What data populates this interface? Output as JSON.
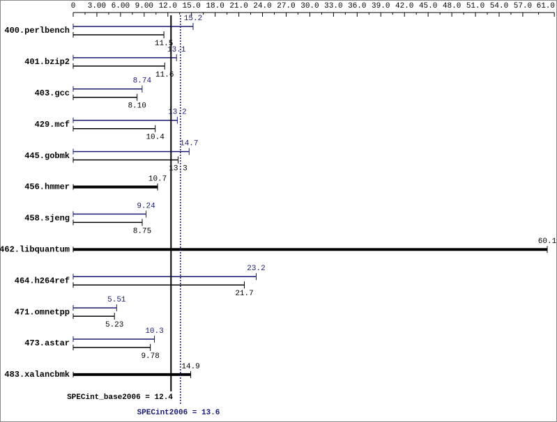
{
  "chart_data": {
    "type": "bar",
    "orientation": "horizontal",
    "categories": [
      "400.perlbench",
      "401.bzip2",
      "403.gcc",
      "429.mcf",
      "445.gobmk",
      "456.hmmer",
      "458.sjeng",
      "462.libquantum",
      "464.h264ref",
      "471.omnetpp",
      "473.astar",
      "483.xalancbmk"
    ],
    "series": [
      {
        "color": "#191970",
        "values": [
          15.2,
          13.1,
          8.74,
          13.2,
          14.7,
          null,
          9.24,
          null,
          23.2,
          5.51,
          10.3,
          null
        ]
      },
      {
        "color": "#000000",
        "values": [
          11.5,
          11.6,
          8.1,
          10.4,
          13.3,
          10.7,
          8.75,
          60.1,
          21.7,
          5.23,
          9.78,
          14.9
        ],
        "value_labels": [
          "11.5",
          "11.6",
          "8.10",
          "10.4",
          "13.3",
          "10.7",
          "8.75",
          "60.1",
          "21.7",
          "5.23",
          "9.78",
          "14.9"
        ]
      }
    ],
    "xlim": [
      0,
      61
    ],
    "xticks": [
      0,
      {
        "value": 3,
        "label": "3.00"
      },
      {
        "value": 6,
        "label": "6.00"
      },
      {
        "value": 9,
        "label": "9.00"
      },
      {
        "value": 12,
        "label": "12.0"
      },
      {
        "value": 15,
        "label": "15.0"
      },
      {
        "value": 18,
        "label": "18.0"
      },
      {
        "value": 21,
        "label": "21.0"
      },
      {
        "value": 24,
        "label": "24.0"
      },
      {
        "value": 27,
        "label": "27.0"
      },
      {
        "value": 30,
        "label": "30.0"
      },
      {
        "value": 33,
        "label": "33.0"
      },
      {
        "value": 36,
        "label": "36.0"
      },
      {
        "value": 39,
        "label": "39.0"
      },
      {
        "value": 42,
        "label": "42.0"
      },
      {
        "value": 45,
        "label": "45.0"
      },
      {
        "value": 48,
        "label": "48.0"
      },
      {
        "value": 51,
        "label": "51.0"
      },
      {
        "value": 54,
        "label": "54.0"
      },
      {
        "value": 57,
        "label": "57.0"
      },
      {
        "value": 61,
        "label": "61.0"
      }
    ],
    "reference_lines": [
      {
        "value": 12.4,
        "label": "SPECint_base2006 = 12.4",
        "color": "#000000",
        "dashed": false
      },
      {
        "value": 13.6,
        "label": "SPECint2006 = 13.6",
        "color": "#191970",
        "dashed": true
      }
    ]
  }
}
